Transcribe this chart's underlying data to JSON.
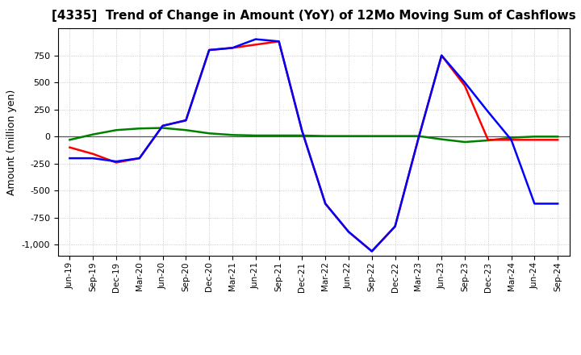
{
  "title": "[4335]  Trend of Change in Amount (YoY) of 12Mo Moving Sum of Cashflows",
  "ylabel": "Amount (million yen)",
  "x_labels": [
    "Jun-19",
    "Sep-19",
    "Dec-19",
    "Mar-20",
    "Jun-20",
    "Sep-20",
    "Dec-20",
    "Mar-21",
    "Jun-21",
    "Sep-21",
    "Dec-21",
    "Mar-22",
    "Jun-22",
    "Sep-22",
    "Dec-22",
    "Mar-23",
    "Jun-23",
    "Sep-23",
    "Dec-23",
    "Mar-24",
    "Jun-24",
    "Sep-24"
  ],
  "operating": [
    -100,
    -160,
    -240,
    -200,
    100,
    150,
    800,
    820,
    850,
    880,
    50,
    -620,
    -880,
    -1060,
    -830,
    -20,
    750,
    470,
    -30,
    -30,
    -30,
    -30
  ],
  "investing": [
    -30,
    20,
    60,
    75,
    80,
    60,
    30,
    15,
    10,
    10,
    10,
    5,
    5,
    5,
    5,
    5,
    -25,
    -50,
    -35,
    -10,
    0,
    0
  ],
  "free": [
    -200,
    -200,
    -230,
    -200,
    100,
    150,
    800,
    820,
    900,
    880,
    50,
    -620,
    -880,
    -1060,
    -830,
    -20,
    750,
    500,
    230,
    -30,
    -620,
    -620
  ],
  "operating_color": "#ff0000",
  "investing_color": "#008000",
  "free_color": "#0000ff",
  "ylim": [
    -1100,
    1000
  ],
  "yticks": [
    -1000,
    -750,
    -500,
    -250,
    0,
    250,
    500,
    750
  ],
  "background_color": "#ffffff",
  "grid_color": "#aaaaaa"
}
